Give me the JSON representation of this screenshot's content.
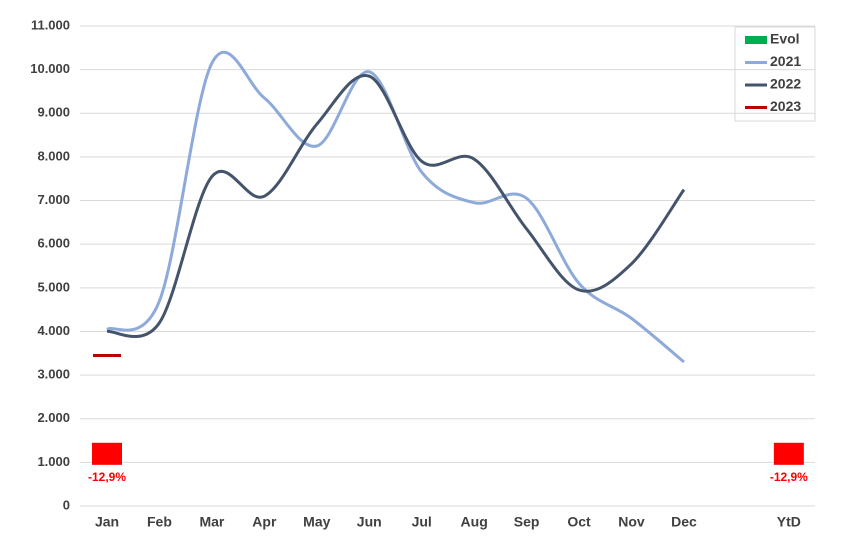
{
  "chart_data": {
    "type": "line",
    "categories": [
      "Jan",
      "Feb",
      "Mar",
      "Apr",
      "May",
      "Jun",
      "Jul",
      "Aug",
      "Sep",
      "Oct",
      "Nov",
      "Dec",
      null,
      "YtD"
    ],
    "series": [
      {
        "name": "Evol",
        "type": "bar",
        "axis": "y2",
        "color": "#00b050",
        "negative_color": "#ff0000",
        "values": [
          -12.9,
          null,
          null,
          null,
          null,
          null,
          null,
          null,
          null,
          null,
          null,
          null,
          null,
          -12.9
        ],
        "value_labels": [
          "-12,9%",
          null,
          null,
          null,
          null,
          null,
          null,
          null,
          null,
          null,
          null,
          null,
          null,
          "-12,9%"
        ]
      },
      {
        "name": "2021",
        "type": "line",
        "color": "#8eaadb",
        "values": [
          4050,
          4700,
          10150,
          9350,
          8250,
          9950,
          7650,
          6950,
          7050,
          5100,
          4300,
          3300,
          null,
          null
        ]
      },
      {
        "name": "2022",
        "type": "line",
        "color": "#44546a",
        "values": [
          4000,
          4200,
          7550,
          7100,
          8750,
          9850,
          7900,
          7950,
          6350,
          4950,
          5550,
          7250,
          null,
          null
        ]
      },
      {
        "name": "2023",
        "type": "line",
        "color": "#c00000",
        "values": [
          3450,
          null,
          null,
          null,
          null,
          null,
          null,
          null,
          null,
          null,
          null,
          null,
          null,
          null
        ]
      }
    ],
    "ylim": [
      0,
      11000
    ],
    "yticks": [
      0,
      {
        "value": 1000,
        "label": "1.000"
      },
      {
        "value": 2000,
        "label": "2.000"
      },
      {
        "value": 3000,
        "label": "3.000"
      },
      {
        "value": 4000,
        "label": "4.000"
      },
      {
        "value": 5000,
        "label": "5.000"
      },
      {
        "value": 6000,
        "label": "6.000"
      },
      {
        "value": 7000,
        "label": "7.000"
      },
      {
        "value": 8000,
        "label": "8.000"
      },
      {
        "value": 9000,
        "label": "9.000"
      },
      {
        "value": 10000,
        "label": "10.000"
      },
      {
        "value": 11000,
        "label": "11.000"
      }
    ],
    "y2lim": [
      -37,
      244
    ],
    "grid": true,
    "legend": "top-right"
  }
}
